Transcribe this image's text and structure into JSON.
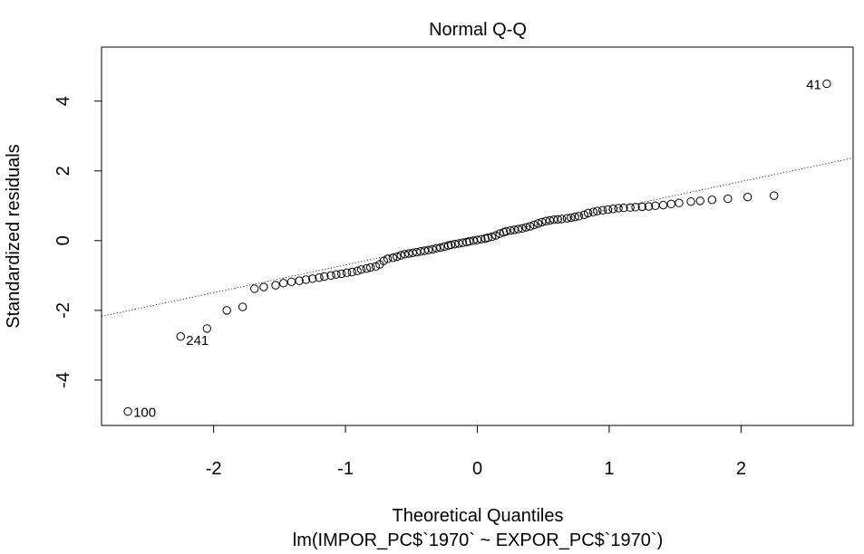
{
  "chart_data": {
    "type": "scatter",
    "title": "Normal Q-Q",
    "xlabel": "Theoretical Quantiles",
    "subtitle": "lm(IMPOR_PC$`1970` ~ EXPOR_PC$`1970`)",
    "ylabel": "Standardized residuals",
    "xlim": [
      -2.85,
      2.85
    ],
    "ylim": [
      -5.3,
      5.55
    ],
    "x_ticks": [
      -2,
      -1,
      0,
      1,
      2
    ],
    "y_ticks": [
      -4,
      -2,
      0,
      2,
      4
    ],
    "x_tick_labels": [
      "-2",
      "-1",
      "0",
      "1",
      "2"
    ],
    "y_tick_labels": [
      "-4",
      "-2",
      "0",
      "2",
      "4"
    ],
    "grid": false,
    "reference_line": {
      "style": "dotted",
      "points": [
        [
          -2.85,
          -2.17
        ],
        [
          2.85,
          2.37
        ]
      ]
    },
    "labeled_points": [
      {
        "label": "41",
        "x": 2.65,
        "y": 4.5
      },
      {
        "label": "241",
        "x": -2.25,
        "y": -2.75
      },
      {
        "label": "100",
        "x": -2.65,
        "y": -4.9
      }
    ],
    "points": [
      [
        -2.65,
        -4.9
      ],
      [
        -2.25,
        -2.75
      ],
      [
        -2.05,
        -2.52
      ],
      [
        -1.9,
        -2.0
      ],
      [
        -1.78,
        -1.9
      ],
      [
        -1.69,
        -1.38
      ],
      [
        -1.62,
        -1.33
      ],
      [
        -1.53,
        -1.28
      ],
      [
        -1.47,
        -1.22
      ],
      [
        -1.41,
        -1.18
      ],
      [
        -1.35,
        -1.15
      ],
      [
        -1.3,
        -1.12
      ],
      [
        -1.25,
        -1.09
      ],
      [
        -1.2,
        -1.06
      ],
      [
        -1.16,
        -1.03
      ],
      [
        -1.11,
        -1.0
      ],
      [
        -1.07,
        -0.97
      ],
      [
        -1.03,
        -0.95
      ],
      [
        -0.99,
        -0.92
      ],
      [
        -0.95,
        -0.9
      ],
      [
        -0.91,
        -0.87
      ],
      [
        -0.88,
        -0.83
      ],
      [
        -0.84,
        -0.8
      ],
      [
        -0.81,
        -0.77
      ],
      [
        -0.77,
        -0.74
      ],
      [
        -0.74,
        -0.68
      ],
      [
        -0.71,
        -0.58
      ],
      [
        -0.68,
        -0.52
      ],
      [
        -0.64,
        -0.49
      ],
      [
        -0.61,
        -0.46
      ],
      [
        -0.58,
        -0.42
      ],
      [
        -0.55,
        -0.39
      ],
      [
        -0.52,
        -0.37
      ],
      [
        -0.49,
        -0.35
      ],
      [
        -0.46,
        -0.33
      ],
      [
        -0.43,
        -0.31
      ],
      [
        -0.4,
        -0.29
      ],
      [
        -0.37,
        -0.27
      ],
      [
        -0.34,
        -0.25
      ],
      [
        -0.31,
        -0.22
      ],
      [
        -0.28,
        -0.2
      ],
      [
        -0.25,
        -0.17
      ],
      [
        -0.22,
        -0.14
      ],
      [
        -0.2,
        -0.12
      ],
      [
        -0.17,
        -0.1
      ],
      [
        -0.14,
        -0.08
      ],
      [
        -0.11,
        -0.06
      ],
      [
        -0.08,
        -0.04
      ],
      [
        -0.06,
        -0.02
      ],
      [
        -0.03,
        0.0
      ],
      [
        0.0,
        0.02
      ],
      [
        0.03,
        0.04
      ],
      [
        0.06,
        0.06
      ],
      [
        0.08,
        0.08
      ],
      [
        0.11,
        0.11
      ],
      [
        0.14,
        0.15
      ],
      [
        0.17,
        0.2
      ],
      [
        0.2,
        0.24
      ],
      [
        0.22,
        0.27
      ],
      [
        0.25,
        0.29
      ],
      [
        0.28,
        0.31
      ],
      [
        0.31,
        0.33
      ],
      [
        0.34,
        0.35
      ],
      [
        0.37,
        0.38
      ],
      [
        0.4,
        0.41
      ],
      [
        0.43,
        0.45
      ],
      [
        0.46,
        0.49
      ],
      [
        0.49,
        0.53
      ],
      [
        0.52,
        0.56
      ],
      [
        0.55,
        0.58
      ],
      [
        0.58,
        0.6
      ],
      [
        0.61,
        0.61
      ],
      [
        0.64,
        0.62
      ],
      [
        0.68,
        0.64
      ],
      [
        0.71,
        0.66
      ],
      [
        0.74,
        0.68
      ],
      [
        0.77,
        0.7
      ],
      [
        0.81,
        0.74
      ],
      [
        0.84,
        0.79
      ],
      [
        0.88,
        0.82
      ],
      [
        0.91,
        0.85
      ],
      [
        0.95,
        0.87
      ],
      [
        0.99,
        0.89
      ],
      [
        1.03,
        0.91
      ],
      [
        1.07,
        0.93
      ],
      [
        1.11,
        0.94
      ],
      [
        1.16,
        0.95
      ],
      [
        1.2,
        0.96
      ],
      [
        1.25,
        0.97
      ],
      [
        1.3,
        0.98
      ],
      [
        1.35,
        1.0
      ],
      [
        1.41,
        1.02
      ],
      [
        1.47,
        1.05
      ],
      [
        1.53,
        1.08
      ],
      [
        1.62,
        1.12
      ],
      [
        1.69,
        1.14
      ],
      [
        1.78,
        1.17
      ],
      [
        1.9,
        1.2
      ],
      [
        2.05,
        1.25
      ],
      [
        2.25,
        1.29
      ],
      [
        2.65,
        4.5
      ]
    ]
  }
}
